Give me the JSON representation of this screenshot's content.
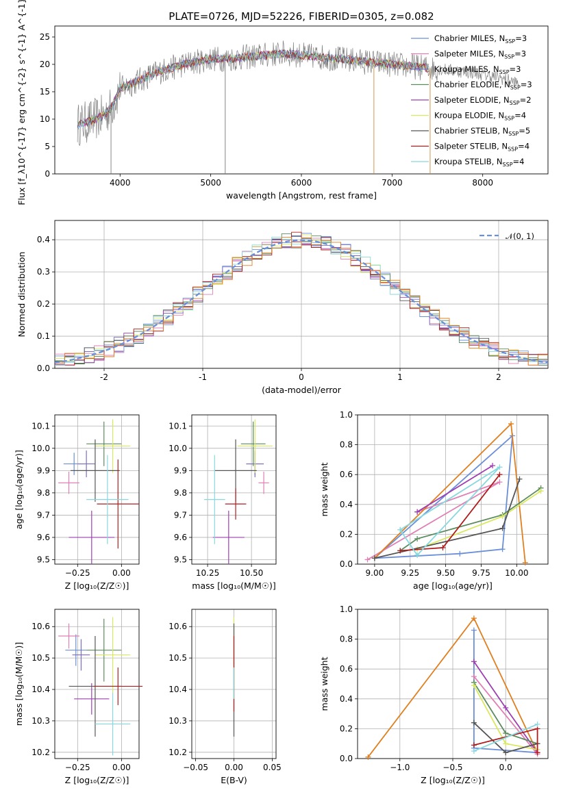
{
  "colors": {
    "series": [
      "#6a8fd8",
      "#e07fb4",
      "#7b6ec0",
      "#5b8c5e",
      "#9d3fb0",
      "#d8e860",
      "#555555",
      "#b01c1c",
      "#89d8de"
    ],
    "gauss": "#6a8fd8",
    "orange": "#e07f1f"
  },
  "title": "PLATE=0726, MJD=52226, FIBERID=0305, z=0.082",
  "chart_data": [
    {
      "id": "spectrum",
      "type": "line",
      "xlabel": "wavelength [Angstrom, rest frame]",
      "ylabel": "Flux [f_λ10^{-17} erg cm^{-2} s^{-1} A^{-1}]",
      "xlim": [
        3280,
        8720
      ],
      "ylim": [
        0,
        27
      ],
      "xticks": [
        4000,
        5000,
        6000,
        7000,
        8000
      ],
      "yticks": [
        0,
        5,
        10,
        15,
        20,
        25
      ],
      "continuum": [
        [
          3530,
          9
        ],
        [
          3650,
          9.5
        ],
        [
          3800,
          10.5
        ],
        [
          3900,
          12
        ],
        [
          4000,
          15.5
        ],
        [
          4200,
          17
        ],
        [
          4400,
          18.5
        ],
        [
          4700,
          20
        ],
        [
          5000,
          21
        ],
        [
          5200,
          21
        ],
        [
          5500,
          21.5
        ],
        [
          5800,
          22
        ],
        [
          6100,
          21.5
        ],
        [
          6400,
          21
        ],
        [
          6700,
          20.5
        ],
        [
          7000,
          20
        ],
        [
          7300,
          19.5
        ],
        [
          7600,
          19
        ],
        [
          7900,
          18.5
        ],
        [
          8200,
          17.5
        ],
        [
          8400,
          16.5
        ]
      ],
      "spikes": [
        [
          3900,
          0
        ],
        [
          5160,
          0
        ],
        [
          6800,
          0
        ],
        [
          7420,
          0
        ]
      ],
      "legend": [
        {
          "label": "Chabrier MILES, N",
          "sub": "SSP",
          "tail": "=3"
        },
        {
          "label": "Salpeter MILES, N",
          "sub": "SSP",
          "tail": "=3"
        },
        {
          "label": "Kroupa MILES, N",
          "sub": "SSP",
          "tail": "=3"
        },
        {
          "label": "Chabrier ELODIE, N",
          "sub": "SSP",
          "tail": "=3"
        },
        {
          "label": "Salpeter ELODIE, N",
          "sub": "SSP",
          "tail": "=2"
        },
        {
          "label": "Kroupa ELODIE, N",
          "sub": "SSP",
          "tail": "=4"
        },
        {
          "label": "Chabrier STELIB, N",
          "sub": "SSP",
          "tail": "=5"
        },
        {
          "label": "Salpeter STELIB, N",
          "sub": "SSP",
          "tail": "=4"
        },
        {
          "label": "Kroupa STELIB, N",
          "sub": "SSP",
          "tail": "=4"
        }
      ]
    },
    {
      "id": "residuals",
      "type": "histogram",
      "xlabel": "(data-model)/error",
      "ylabel": "Normed distribution",
      "xlim": [
        -2.5,
        2.5
      ],
      "ylim": [
        0,
        0.46
      ],
      "xticks": [
        -2,
        -1,
        0,
        1,
        2
      ],
      "yticks": [
        0.0,
        0.1,
        0.2,
        0.3,
        0.4
      ],
      "bin_width": 0.1,
      "gauss_label": "𝒩(0, 1)"
    },
    {
      "id": "age-vs-Z",
      "type": "scatter",
      "xlabel": "Z [log₁₀(Z/Z☉)]",
      "ylabel": "age  [log₁₀(age/yr)]",
      "xlim": [
        -0.38,
        0.1
      ],
      "ylim": [
        9.48,
        10.15
      ],
      "xticks": [
        -0.25,
        0.0
      ],
      "xticklabels": [
        "−0.25",
        "0.00"
      ],
      "yticks": [
        9.5,
        9.6,
        9.7,
        9.8,
        9.9,
        10.0,
        10.1
      ],
      "points": [
        {
          "x": -0.27,
          "y": 9.93,
          "ex": 0.06,
          "ey": 0.05
        },
        {
          "x": -0.3,
          "y": 9.845,
          "ex": 0.06,
          "ey": 0.05
        },
        {
          "x": -0.2,
          "y": 9.93,
          "ex": 0.05,
          "ey": 0.06
        },
        {
          "x": -0.1,
          "y": 10.02,
          "ex": 0.1,
          "ey": 0.1
        },
        {
          "x": -0.17,
          "y": 9.6,
          "ex": 0.13,
          "ey": 0.12
        },
        {
          "x": -0.05,
          "y": 10.01,
          "ex": 0.1,
          "ey": 0.12
        },
        {
          "x": -0.15,
          "y": 9.9,
          "ex": 0.14,
          "ey": 0.14
        },
        {
          "x": -0.02,
          "y": 9.75,
          "ex": 0.12,
          "ey": 0.2
        },
        {
          "x": -0.08,
          "y": 9.77,
          "ex": 0.12,
          "ey": 0.2
        }
      ]
    },
    {
      "id": "age-vs-mass",
      "type": "scatter",
      "xlabel": "mass [log₁₀(M/M☉)]",
      "ylabel": "",
      "xlim": [
        10.16,
        10.64
      ],
      "ylim": [
        9.48,
        10.15
      ],
      "xticks": [
        10.25,
        10.5
      ],
      "xticklabels": [
        "10.25",
        "10.50"
      ],
      "yticks": [
        9.5,
        9.6,
        9.7,
        9.8,
        9.9,
        10.0,
        10.1
      ],
      "points": [
        {
          "x": 10.52,
          "y": 9.93,
          "ex": 0.05,
          "ey": 0.05
        },
        {
          "x": 10.57,
          "y": 9.845,
          "ex": 0.03,
          "ey": 0.05
        },
        {
          "x": 10.52,
          "y": 9.93,
          "ex": 0.05,
          "ey": 0.06
        },
        {
          "x": 10.51,
          "y": 10.02,
          "ex": 0.07,
          "ey": 0.1
        },
        {
          "x": 10.37,
          "y": 9.6,
          "ex": 0.09,
          "ey": 0.12
        },
        {
          "x": 10.52,
          "y": 10.01,
          "ex": 0.1,
          "ey": 0.12
        },
        {
          "x": 10.41,
          "y": 9.9,
          "ex": 0.12,
          "ey": 0.14
        },
        {
          "x": 10.41,
          "y": 9.75,
          "ex": 0.06,
          "ey": 0.07
        },
        {
          "x": 10.29,
          "y": 9.77,
          "ex": 0.06,
          "ey": 0.2
        }
      ]
    },
    {
      "id": "weight-vs-age",
      "type": "line",
      "xlabel": "age  [log₁₀(age/yr)]",
      "ylabel": "mass weight",
      "xlim": [
        8.88,
        10.22
      ],
      "ylim": [
        0,
        1.0
      ],
      "xticks": [
        9.0,
        9.25,
        9.5,
        9.75,
        10.0
      ],
      "xticklabels": [
        "9.00",
        "9.25",
        "9.50",
        "9.75",
        "10.00"
      ],
      "yticks": [
        0.0,
        0.2,
        0.4,
        0.6,
        0.8,
        1.0
      ],
      "series": [
        {
          "c": 0,
          "pts": [
            [
              9.0,
              0.04
            ],
            [
              9.6,
              0.07
            ],
            [
              9.9,
              0.1
            ],
            [
              9.97,
              0.86
            ],
            [
              9.0,
              0.04
            ]
          ]
        },
        {
          "c": 1,
          "pts": [
            [
              8.95,
              0.03
            ],
            [
              9.88,
              0.55
            ],
            [
              9.3,
              0.35
            ]
          ]
        },
        {
          "c": 9,
          "pts": [
            [
              9.0,
              0.04
            ],
            [
              9.96,
              0.94
            ],
            [
              10.06,
              0.01
            ]
          ]
        },
        {
          "c": 3,
          "pts": [
            [
              9.18,
              0.09
            ],
            [
              9.3,
              0.17
            ],
            [
              9.9,
              0.33
            ],
            [
              10.17,
              0.51
            ]
          ]
        },
        {
          "c": 4,
          "pts": [
            [
              9.3,
              0.35
            ],
            [
              9.83,
              0.66
            ]
          ]
        },
        {
          "c": 5,
          "pts": [
            [
              9.3,
              0.1
            ],
            [
              9.9,
              0.32
            ],
            [
              10.17,
              0.49
            ]
          ]
        },
        {
          "c": 6,
          "pts": [
            [
              9.0,
              0.04
            ],
            [
              9.9,
              0.24
            ],
            [
              10.02,
              0.57
            ]
          ]
        },
        {
          "c": 7,
          "pts": [
            [
              9.18,
              0.09
            ],
            [
              9.48,
              0.11
            ],
            [
              9.88,
              0.6
            ]
          ]
        },
        {
          "c": 8,
          "pts": [
            [
              9.18,
              0.23
            ],
            [
              9.3,
              0.06
            ],
            [
              9.88,
              0.65
            ],
            [
              9.18,
              0.23
            ]
          ]
        }
      ]
    },
    {
      "id": "mass-vs-Z",
      "type": "scatter",
      "xlabel": "Z [log₁₀(Z/Z☉)]",
      "ylabel": "mass [log₁₀(M/M☉)]",
      "xlim": [
        -0.38,
        0.1
      ],
      "ylim": [
        10.18,
        10.655
      ],
      "xticks": [
        -0.25,
        0.0
      ],
      "xticklabels": [
        "−0.25",
        "0.00"
      ],
      "yticks": [
        10.2,
        10.3,
        10.4,
        10.5,
        10.6
      ],
      "points": [
        {
          "x": -0.26,
          "y": 10.525,
          "ex": 0.06,
          "ey": 0.05
        },
        {
          "x": -0.3,
          "y": 10.57,
          "ex": 0.06,
          "ey": 0.04
        },
        {
          "x": -0.23,
          "y": 10.51,
          "ex": 0.05,
          "ey": 0.05
        },
        {
          "x": -0.1,
          "y": 10.525,
          "ex": 0.1,
          "ey": 0.1
        },
        {
          "x": -0.17,
          "y": 10.37,
          "ex": 0.1,
          "ey": 0.05
        },
        {
          "x": -0.05,
          "y": 10.51,
          "ex": 0.1,
          "ey": 0.12
        },
        {
          "x": -0.15,
          "y": 10.41,
          "ex": 0.15,
          "ey": 0.16
        },
        {
          "x": -0.02,
          "y": 10.41,
          "ex": 0.14,
          "ey": 0.06
        },
        {
          "x": -0.05,
          "y": 10.29,
          "ex": 0.1,
          "ey": 0.1
        }
      ]
    },
    {
      "id": "mass-vs-ebv",
      "type": "scatter",
      "xlabel": "E(B-V)",
      "ylabel": "",
      "xlim": [
        -0.055,
        0.055
      ],
      "ylim": [
        10.18,
        10.655
      ],
      "xticks": [
        -0.05,
        0.0,
        0.05
      ],
      "xticklabels": [
        "−0.05",
        "0.00",
        "0.05"
      ],
      "yticks": [
        10.2,
        10.3,
        10.4,
        10.5,
        10.6
      ],
      "points": [
        {
          "x": 0.0,
          "y": 10.5,
          "ex": 0.0,
          "ey": 0.13
        },
        {
          "x": 0.0,
          "y": 10.43,
          "ex": 0.0,
          "ey": 0.18
        },
        {
          "x": 0.0,
          "y": 10.45,
          "ex": 0.0,
          "ey": 0.12
        },
        {
          "x": 0.0,
          "y": 10.42,
          "ex": 0.0,
          "ey": 0.05
        }
      ]
    },
    {
      "id": "weight-vs-Z",
      "type": "line",
      "xlabel": "Z [log₁₀(Z/Z☉)]",
      "ylabel": "mass weight",
      "xlim": [
        -1.4,
        0.4
      ],
      "ylim": [
        0,
        1.0
      ],
      "xticks": [
        -1.0,
        -0.5,
        0.0
      ],
      "xticklabels": [
        "−1.0",
        "−0.5",
        "0.0"
      ],
      "yticks": [
        0.0,
        0.2,
        0.4,
        0.6,
        0.8,
        1.0
      ],
      "series": [
        {
          "c": 9,
          "pts": [
            [
              -1.3,
              0.01
            ],
            [
              -0.3,
              0.94
            ],
            [
              0.3,
              0.04
            ]
          ]
        },
        {
          "c": 0,
          "pts": [
            [
              -0.3,
              0.86
            ],
            [
              -0.3,
              0.07
            ],
            [
              0.3,
              0.04
            ]
          ]
        },
        {
          "c": 4,
          "pts": [
            [
              -0.3,
              0.65
            ],
            [
              0.0,
              0.34
            ],
            [
              0.3,
              0.04
            ]
          ]
        },
        {
          "c": 1,
          "pts": [
            [
              -0.3,
              0.55
            ],
            [
              0.3,
              0.03
            ]
          ]
        },
        {
          "c": 3,
          "pts": [
            [
              -0.3,
              0.51
            ],
            [
              0.0,
              0.17
            ],
            [
              0.3,
              0.1
            ]
          ]
        },
        {
          "c": 5,
          "pts": [
            [
              -0.3,
              0.49
            ],
            [
              0.0,
              0.1
            ],
            [
              0.3,
              0.06
            ]
          ]
        },
        {
          "c": 6,
          "pts": [
            [
              -0.3,
              0.24
            ],
            [
              0.0,
              0.04
            ],
            [
              0.3,
              0.1
            ]
          ]
        },
        {
          "c": 7,
          "pts": [
            [
              -0.3,
              0.09
            ],
            [
              0.3,
              0.2
            ],
            [
              0.3,
              0.04
            ]
          ]
        },
        {
          "c": 8,
          "pts": [
            [
              -0.3,
              0.05
            ],
            [
              0.3,
              0.23
            ]
          ]
        }
      ]
    }
  ]
}
